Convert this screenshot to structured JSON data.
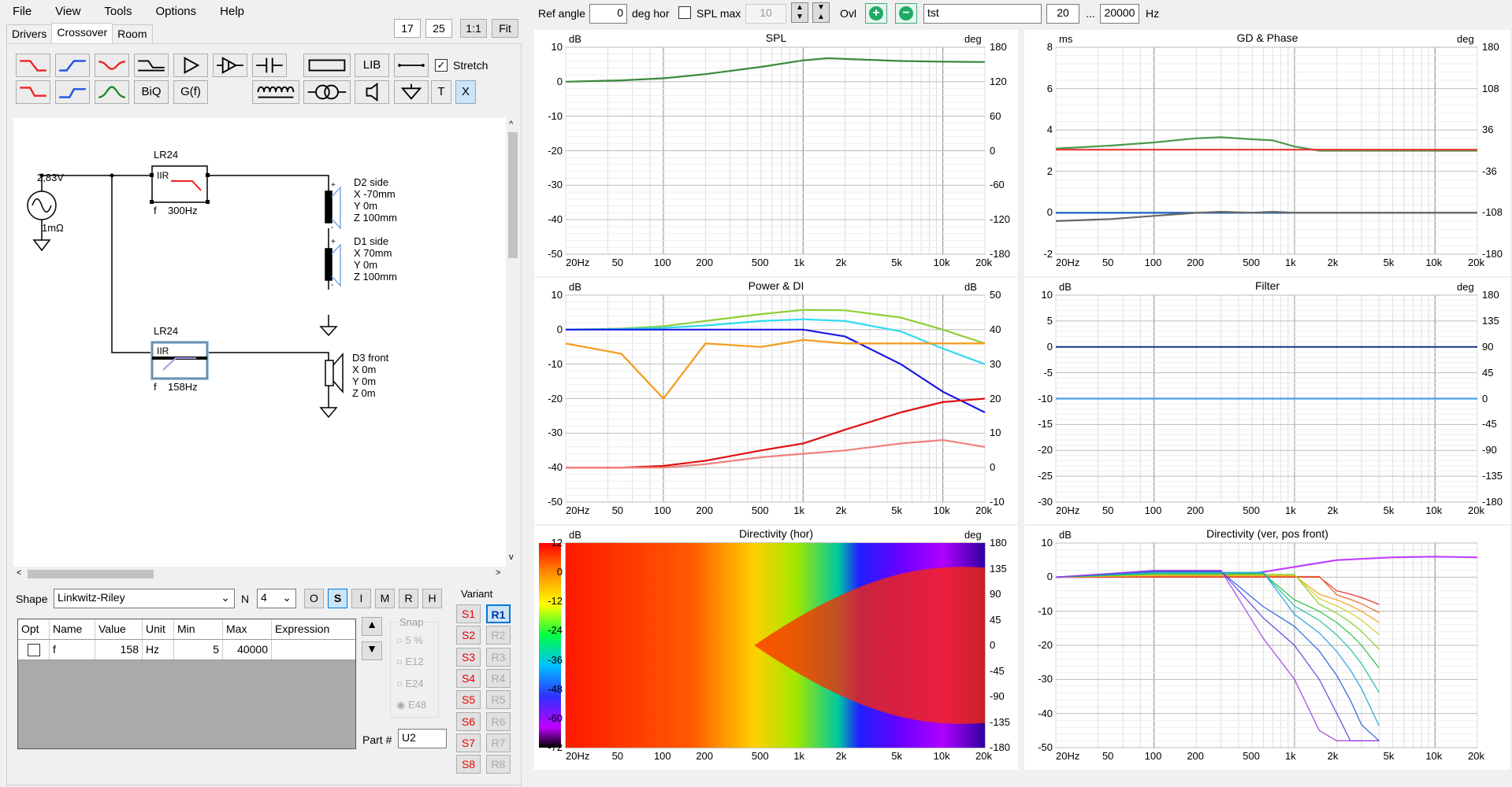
{
  "menu": [
    "File",
    "View",
    "Tools",
    "Options",
    "Help"
  ],
  "top_left_boxes": {
    "a": "17",
    "b": "25",
    "ratio": "1:1",
    "fit": "Fit"
  },
  "tabs": [
    "Drivers",
    "Crossover",
    "Room"
  ],
  "toolbar": {
    "lib": "LIB",
    "biq": "BiQ",
    "gf": "G(f)",
    "t": "T",
    "x": "X",
    "stretch": "Stretch"
  },
  "schematic": {
    "source_voltage": "2,83V",
    "source_res": "1mΩ",
    "filter1": {
      "type": "LR24",
      "kind": "IIR",
      "param": "f    300Hz"
    },
    "filter2": {
      "type": "LR24",
      "kind": "IIR",
      "param": "f    158Hz"
    },
    "driver1": {
      "name": "D2 side",
      "x": "X -70mm",
      "y": "Y 0m",
      "z": "Z 100mm"
    },
    "driver2": {
      "name": "D1 side",
      "x": "X 70mm",
      "y": "Y 0m",
      "z": "Z 100mm"
    },
    "driver3": {
      "name": "D3 front",
      "x": "X 0m",
      "y": "Y 0m",
      "z": "Z 0m"
    }
  },
  "shape": {
    "label": "Shape",
    "value": "Linkwitz-Riley",
    "n_label": "N",
    "n_value": "4",
    "buttons": [
      "O",
      "S",
      "I",
      "M",
      "R",
      "H"
    ]
  },
  "params": {
    "headers": [
      "Opt",
      "Name",
      "Value",
      "Unit",
      "Min",
      "Max",
      "Expression"
    ],
    "row": {
      "name": "f",
      "value": "158",
      "unit": "Hz",
      "min": "5",
      "max": "40000",
      "expr": ""
    }
  },
  "snap": {
    "label": "Snap",
    "options": [
      "5 %",
      "E12",
      "E24",
      "E48"
    ]
  },
  "part": {
    "label": "Part #",
    "value": "U2"
  },
  "variant": {
    "label": "Variant",
    "s": [
      "S1",
      "S2",
      "S3",
      "S4",
      "S5",
      "S6",
      "S7",
      "S8"
    ],
    "r": [
      "R1",
      "R2",
      "R3",
      "R4",
      "R5",
      "R6",
      "R7",
      "R8"
    ]
  },
  "topbar": {
    "ref_angle_label": "Ref angle",
    "ref_angle": "0",
    "deg_hor": "deg hor",
    "spl_max_label": "SPL max",
    "spl_max": "10",
    "ovl": "Ovl",
    "name": "tst",
    "f_min": "20",
    "dots": "...",
    "f_max": "20000",
    "hz": "Hz"
  },
  "x_ticks": [
    "20Hz",
    "50",
    "100",
    "200",
    "500",
    "1k",
    "2k",
    "5k",
    "10k",
    "20k"
  ],
  "charts": [
    {
      "title": "SPL",
      "left_unit": "dB",
      "right_unit": "deg",
      "left": [
        "10",
        "0",
        "-10",
        "-20",
        "-30",
        "-40",
        "-50"
      ],
      "right": [
        "180",
        "120",
        "60",
        "0",
        "-60",
        "-120",
        "-180"
      ]
    },
    {
      "title": "GD & Phase",
      "left_unit": "ms",
      "right_unit": "deg",
      "left": [
        "8",
        "6",
        "4",
        "2",
        "0",
        "-2"
      ],
      "right": [
        "180",
        "108",
        "36",
        "-36",
        "-108",
        "-180"
      ]
    },
    {
      "title": "Power & DI",
      "left_unit": "dB",
      "right_unit": "dB",
      "left": [
        "10",
        "0",
        "-10",
        "-20",
        "-30",
        "-40",
        "-50"
      ],
      "right": [
        "50",
        "40",
        "30",
        "20",
        "10",
        "0",
        "-10"
      ]
    },
    {
      "title": "Filter",
      "left_unit": "dB",
      "right_unit": "deg",
      "left": [
        "10",
        "5",
        "0",
        "-5",
        "-10",
        "-15",
        "-20",
        "-25",
        "-30"
      ],
      "right": [
        "180",
        "135",
        "90",
        "45",
        "0",
        "-45",
        "-90",
        "-135",
        "-180"
      ]
    },
    {
      "title": "Directivity (hor)",
      "left_unit": "dB",
      "right_unit": "deg",
      "left": [
        "12",
        "0",
        "-12",
        "-24",
        "-36",
        "-48",
        "-60",
        "-72"
      ],
      "right": [
        "180",
        "135",
        "90",
        "45",
        "0",
        "-45",
        "-90",
        "-135",
        "-180"
      ]
    },
    {
      "title": "Directivity (ver, pos front)",
      "left_unit": "dB",
      "right_unit": "",
      "left": [
        "10",
        "0",
        "-10",
        "-20",
        "-30",
        "-40",
        "-50"
      ],
      "right": []
    }
  ],
  "chart_data": [
    {
      "type": "line",
      "title": "SPL",
      "x": [
        20,
        50,
        100,
        200,
        500,
        1000,
        1500,
        2000,
        5000,
        10000,
        20000
      ],
      "series": [
        {
          "values": [
            0,
            0.4,
            1,
            2.2,
            4.3,
            6.2,
            6.8,
            6.6,
            6,
            5.8,
            5.7
          ]
        }
      ],
      "ylim": [
        -50,
        10
      ]
    },
    {
      "type": "line",
      "title": "GD & Phase",
      "x": [
        20,
        50,
        100,
        200,
        300,
        500,
        700,
        1000,
        1500,
        2000,
        5000,
        10000,
        20000
      ],
      "series": [
        {
          "values": [
            3.1,
            3.25,
            3.4,
            3.6,
            3.65,
            3.55,
            3.5,
            3.2,
            3,
            3,
            3,
            3,
            3
          ]
        },
        {
          "values": [
            3.05,
            3.05,
            3.05,
            3.05,
            3.05,
            3.05,
            3.05,
            3.05,
            3.05,
            3.05,
            3.05,
            3.05,
            3.05
          ]
        },
        {
          "values": [
            0,
            0,
            0,
            0,
            0,
            0,
            0,
            0,
            0,
            0,
            0,
            0,
            0
          ]
        },
        {
          "values": [
            -0.4,
            -0.3,
            -0.15,
            0,
            0.05,
            0,
            0.05,
            0,
            0,
            0,
            0,
            0,
            0
          ]
        }
      ],
      "ylim": [
        -2,
        8
      ]
    },
    {
      "type": "line",
      "title": "Power & DI",
      "x": [
        20,
        50,
        100,
        200,
        500,
        1000,
        2000,
        5000,
        10000,
        20000
      ],
      "series": [
        {
          "values": [
            0,
            0.3,
            1,
            2.5,
            4.5,
            5.7,
            5.6,
            3.5,
            0,
            -4
          ]
        },
        {
          "values": [
            0,
            0.2,
            0.5,
            1.2,
            2.5,
            3,
            2.5,
            -0.5,
            -5.5,
            -10
          ]
        },
        {
          "values": [
            0,
            0,
            0,
            0,
            0,
            0,
            -2,
            -10,
            -18,
            -24
          ]
        },
        {
          "values": [
            -40,
            -40,
            -39.5,
            -38,
            -35,
            -33,
            -29,
            -24,
            -21,
            -20
          ]
        },
        {
          "values": [
            -40,
            -40,
            -40,
            -39,
            -37,
            -36,
            -35,
            -33,
            -32,
            -34
          ]
        },
        {
          "values": [
            -4,
            -7,
            -20,
            -4,
            -5,
            -3,
            -4,
            -4,
            -4,
            -4
          ]
        }
      ],
      "ylim": [
        -50,
        10
      ]
    },
    {
      "type": "line",
      "title": "Filter",
      "x": [
        20,
        20000
      ],
      "series": [
        {
          "values": [
            0,
            0
          ]
        },
        {
          "values": [
            -10,
            -10
          ]
        }
      ],
      "ylim": [
        -30,
        10
      ]
    },
    {
      "type": "heatmap",
      "title": "Directivity (hor)",
      "x": [
        20,
        20000
      ],
      "ylim": [
        -180,
        180
      ]
    },
    {
      "type": "line",
      "title": "Directivity (ver, pos front)",
      "x": [
        20,
        100,
        500,
        1000,
        2000,
        5000,
        10000,
        20000
      ],
      "series": [
        {
          "values": [
            0,
            0.1,
            1,
            3,
            5,
            5.8,
            6,
            5.8
          ]
        }
      ],
      "ylim": [
        -50,
        10
      ]
    }
  ],
  "colors": {
    "spl": "#3a8a3a",
    "gd_green": "#4a9a4a",
    "phase_red": "#e33",
    "blue": "#1f5fc0",
    "orange": "#f59a1b",
    "lime": "#8fcf3a",
    "cyan": "#2fd9f0"
  }
}
